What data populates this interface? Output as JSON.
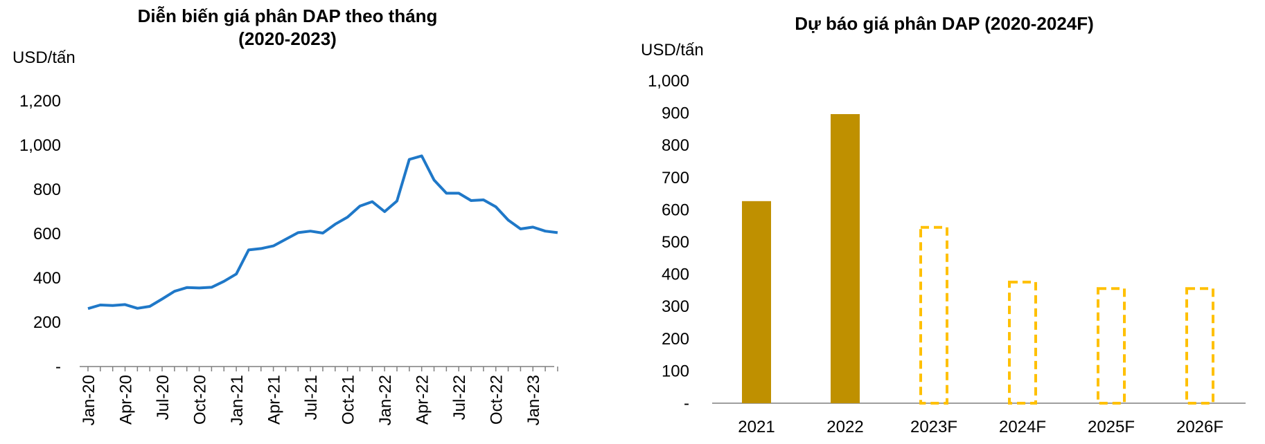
{
  "chart_data": [
    {
      "type": "line",
      "title_line1": "Diễn biến giá phân DAP theo tháng",
      "title_line2": "(2020-2023)",
      "ylabel": "USD/tấn",
      "ylim": [
        0,
        1200
      ],
      "y_ticks": [
        "-",
        "200",
        "400",
        "600",
        "800",
        "1,000",
        "1,200"
      ],
      "x_tick_labels": [
        "Jan-20",
        "Apr-20",
        "Jul-20",
        "Oct-20",
        "Jan-21",
        "Apr-21",
        "Jul-21",
        "Oct-21",
        "Jan-22",
        "Apr-22",
        "Jul-22",
        "Oct-22",
        "Jan-23"
      ],
      "line_color": "#1f78c8",
      "series": [
        {
          "values": [
            262,
            278,
            276,
            280,
            263,
            272,
            305,
            340,
            357,
            355,
            358,
            385,
            418,
            527,
            533,
            545,
            575,
            605,
            612,
            603,
            643,
            675,
            725,
            745,
            700,
            748,
            936,
            952,
            843,
            783,
            783,
            750,
            753,
            722,
            662,
            622,
            630,
            612,
            605
          ]
        }
      ]
    },
    {
      "type": "bar",
      "title": "Dự báo giá phân DAP (2020-2024F)",
      "ylabel": "USD/tấn",
      "ylim": [
        0,
        1000
      ],
      "y_ticks": [
        "-",
        "100",
        "200",
        "300",
        "400",
        "500",
        "600",
        "700",
        "800",
        "900",
        "1,000"
      ],
      "categories": [
        "2021",
        "2022",
        "2023F",
        "2024F",
        "2025F",
        "2026F"
      ],
      "values": [
        627,
        897,
        550,
        380,
        360,
        360
      ],
      "forecast": [
        false,
        false,
        true,
        true,
        true,
        true
      ],
      "actual_color": "#bf9000",
      "forecast_color": "#ffc000"
    }
  ]
}
